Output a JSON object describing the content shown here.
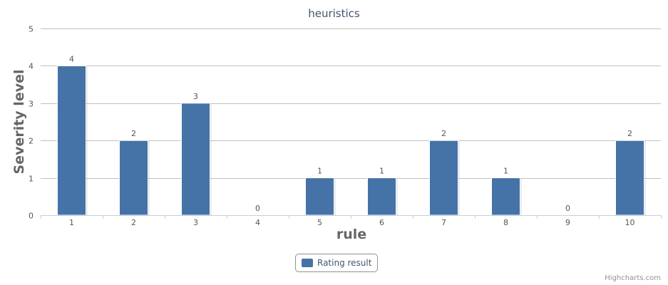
{
  "chart_data": {
    "type": "bar",
    "title": "heuristics",
    "xlabel": "rule",
    "ylabel": "Severity level",
    "categories": [
      "1",
      "2",
      "3",
      "4",
      "5",
      "6",
      "7",
      "8",
      "9",
      "10"
    ],
    "series": [
      {
        "name": "Rating result",
        "values": [
          4,
          2,
          3,
          0,
          1,
          1,
          2,
          1,
          0,
          2
        ],
        "color": "#4572a7"
      }
    ],
    "ylim": [
      0,
      5
    ],
    "yticks": [
      "0",
      "1",
      "2",
      "3",
      "4",
      "5"
    ],
    "grid": true,
    "legend_position": "bottom-center",
    "data_labels": true
  },
  "credits": "Highcharts.com"
}
